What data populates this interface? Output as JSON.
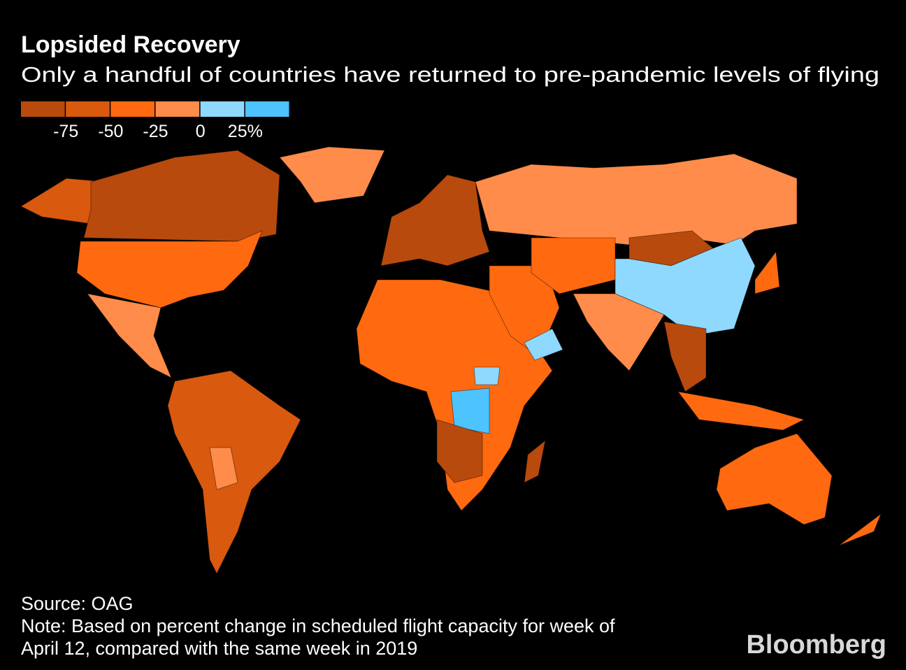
{
  "header": {
    "title": "Lopsided Recovery",
    "subtitle": "Only a handful of countries have returned to pre-pandemic levels of flying"
  },
  "legend": {
    "colors": [
      "#b84a0e",
      "#d9590f",
      "#ff6a10",
      "#ff8c4a",
      "#8fd9ff",
      "#4dc3ff"
    ],
    "range": [
      -100,
      50
    ],
    "ticks": [
      -75,
      -50,
      -25,
      0,
      {
        "value": 25,
        "label": "25%"
      }
    ]
  },
  "footer": {
    "source": "Source: OAG",
    "note": [
      "Note: Based on percent change in scheduled flight capacity for week of",
      "April 12, compared with the same week in 2019"
    ],
    "logo": "Bloomberg"
  }
}
